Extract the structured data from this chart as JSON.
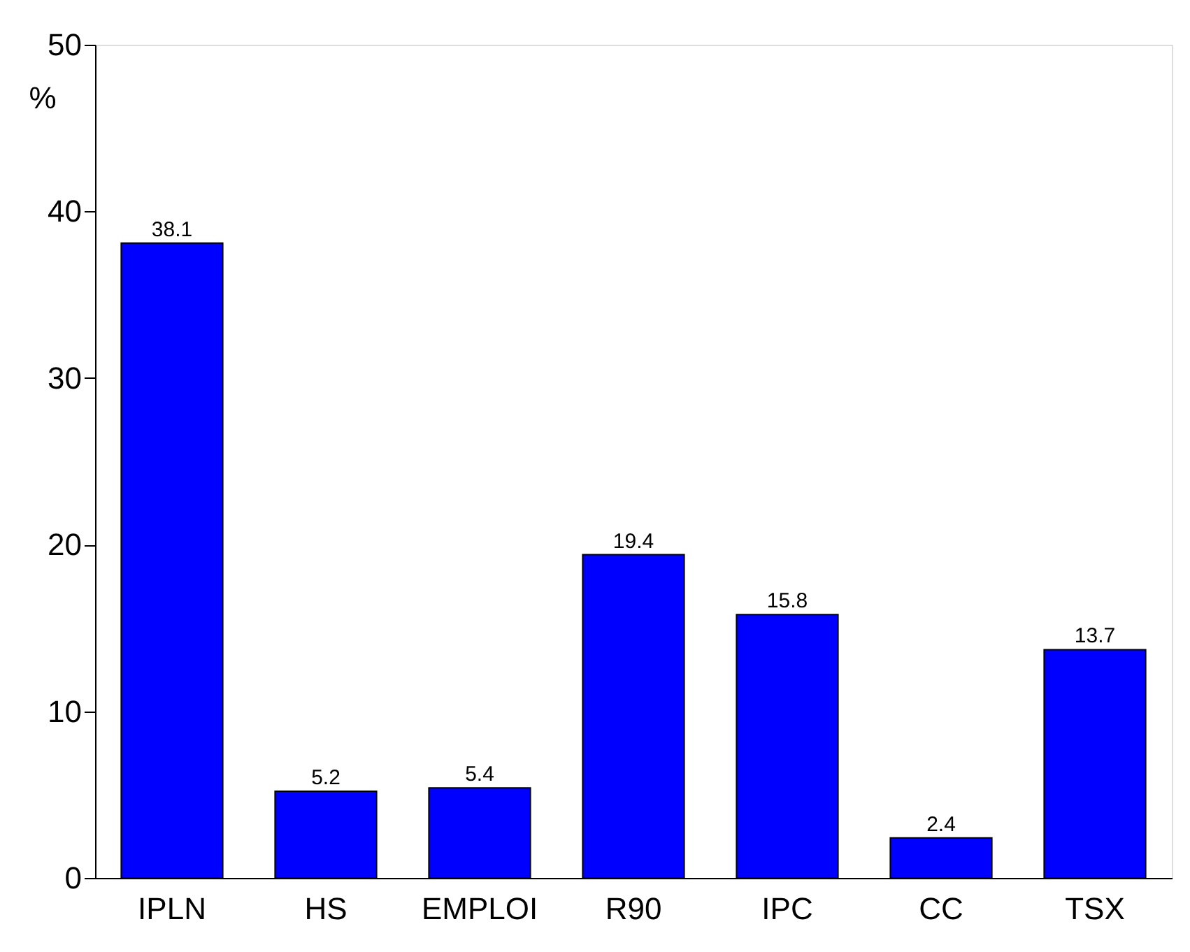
{
  "chart_data": {
    "type": "bar",
    "ylabel": "%",
    "categories": [
      "IPLN",
      "HS",
      "EMPLOI",
      "R90",
      "IPC",
      "CC",
      "TSX"
    ],
    "values": [
      38.1,
      5.2,
      5.4,
      19.4,
      15.8,
      2.4,
      13.7
    ],
    "color": "#0000ff",
    "ylim": [
      0,
      50
    ],
    "yticks": [
      0,
      10,
      20,
      30,
      40,
      50
    ],
    "data_labels": true,
    "grid": false
  }
}
